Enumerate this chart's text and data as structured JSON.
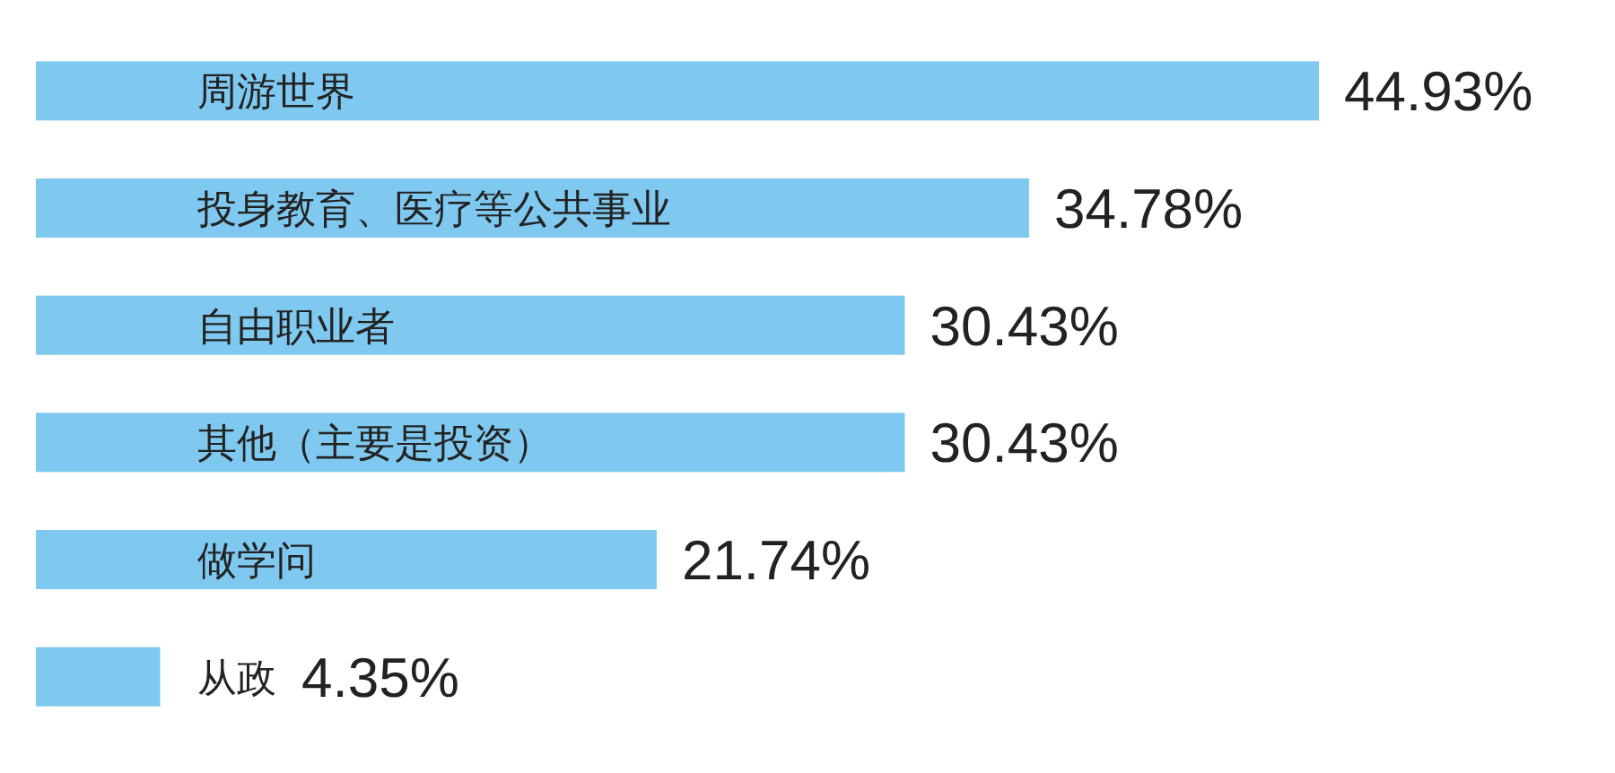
{
  "chart_data": {
    "type": "bar",
    "orientation": "horizontal",
    "categories": [
      "周游世界",
      "投身教育、医疗等公共事业",
      "自由职业者",
      "其他（主要是投资）",
      "做学问",
      "从政"
    ],
    "values": [
      44.93,
      34.78,
      30.43,
      30.43,
      21.74,
      4.35
    ],
    "value_labels": [
      "44.93%",
      "34.78%",
      "30.43%",
      "30.43%",
      "21.74%",
      "4.35%"
    ],
    "color": "#7fc8ef"
  }
}
